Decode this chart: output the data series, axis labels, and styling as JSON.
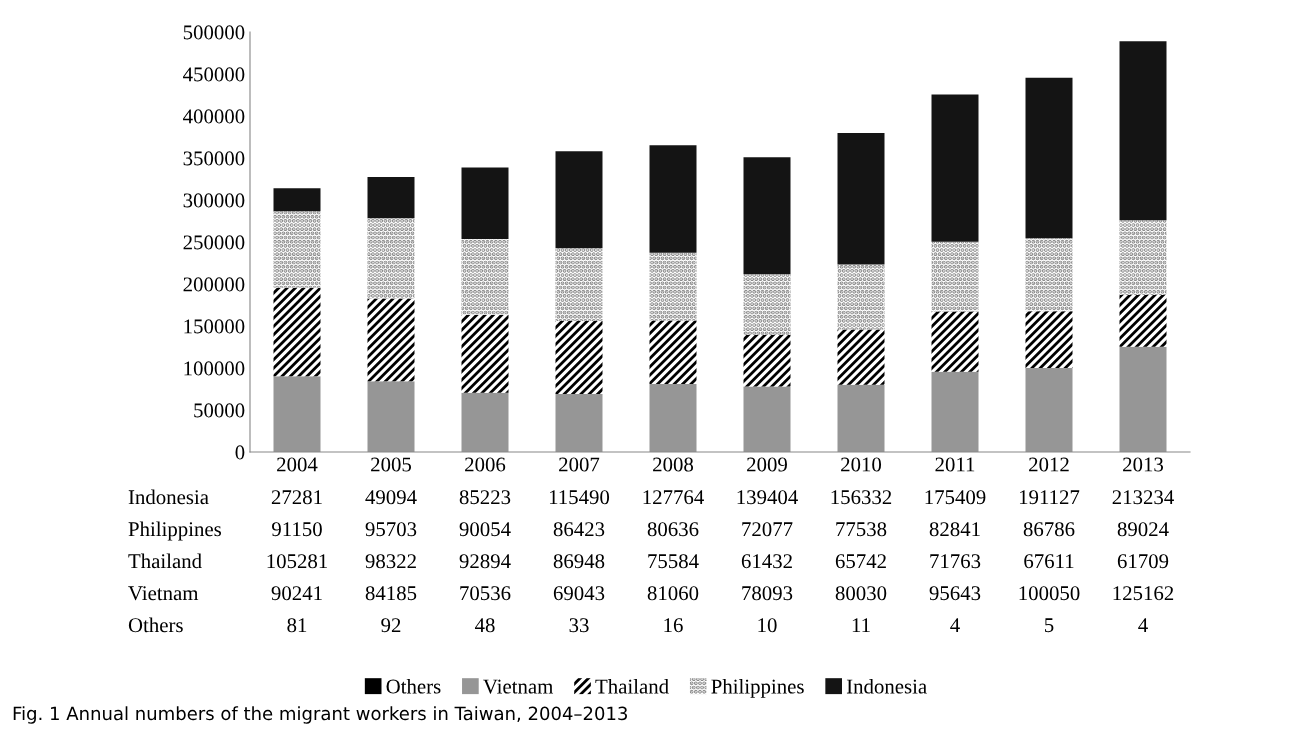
{
  "chart_data": {
    "type": "bar",
    "stacked": true,
    "data_labels": true,
    "legend": "bottom",
    "grid": false,
    "categories": [
      "2004",
      "2005",
      "2006",
      "2007",
      "2008",
      "2009",
      "2010",
      "2011",
      "2012",
      "2013"
    ],
    "series": [
      {
        "name": "Others",
        "color": "#000000",
        "values": [
          81,
          92,
          48,
          33,
          16,
          10,
          11,
          4,
          5,
          4
        ]
      },
      {
        "name": "Vietnam",
        "color": "#969696",
        "values": [
          90241,
          84185,
          70536,
          69043,
          81060,
          78093,
          80030,
          95643,
          100050,
          125162
        ]
      },
      {
        "name": "Thailand",
        "color": "#000000",
        "values": [
          105281,
          98322,
          92894,
          86948,
          75584,
          61432,
          65742,
          71763,
          67611,
          61709
        ]
      },
      {
        "name": "Philippines",
        "color": "#7f7f7f",
        "values": [
          91150,
          95703,
          90054,
          86423,
          80636,
          72077,
          77538,
          82841,
          86786,
          89024
        ]
      },
      {
        "name": "Indonesia",
        "color": "#141414",
        "values": [
          27281,
          49094,
          85223,
          115490,
          127764,
          139404,
          156332,
          175409,
          191127,
          213234
        ]
      }
    ],
    "ylim": [
      0,
      500000
    ],
    "yticks": [
      0,
      50000,
      100000,
      150000,
      200000,
      250000,
      300000,
      350000,
      400000,
      450000,
      500000
    ],
    "annotations": [
      "Fig. 1 Annual numbers of the migrant workers in Taiwan, 2004–2013"
    ]
  }
}
